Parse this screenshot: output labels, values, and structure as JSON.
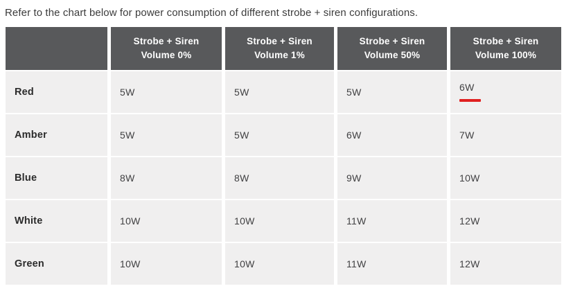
{
  "title": "Refer to the chart below for power consumption of different strobe + siren configurations.",
  "colors": {
    "header_bg": "#58595b",
    "header_text": "#ffffff",
    "row_bg": "#f0efef",
    "body_text": "#404042",
    "underline_red": "#e02020"
  },
  "chart_data": {
    "type": "table",
    "title": "Refer to the chart below for power consumption of different strobe + siren configurations.",
    "columns": [
      "",
      "Strobe + Siren\nVolume 0%",
      "Strobe + Siren\nVolume 1%",
      "Strobe + Siren\nVolume 50%",
      "Strobe + Siren\nVolume 100%"
    ],
    "rows": [
      {
        "label": "Red",
        "values": [
          "5W",
          "5W",
          "5W",
          "6W"
        ]
      },
      {
        "label": "Amber",
        "values": [
          "5W",
          "5W",
          "6W",
          "7W"
        ]
      },
      {
        "label": "Blue",
        "values": [
          "8W",
          "8W",
          "9W",
          "10W"
        ]
      },
      {
        "label": "White",
        "values": [
          "10W",
          "10W",
          "11W",
          "12W"
        ]
      },
      {
        "label": "Green",
        "values": [
          "10W",
          "10W",
          "11W",
          "12W"
        ]
      }
    ],
    "highlight": {
      "row": "Red",
      "column": "Strobe + Siren Volume 100%",
      "value": "6W",
      "style": "red-underline"
    },
    "layout": {
      "header_rows": 1,
      "grid": "white gaps between cells",
      "value_alignment": "left"
    }
  }
}
